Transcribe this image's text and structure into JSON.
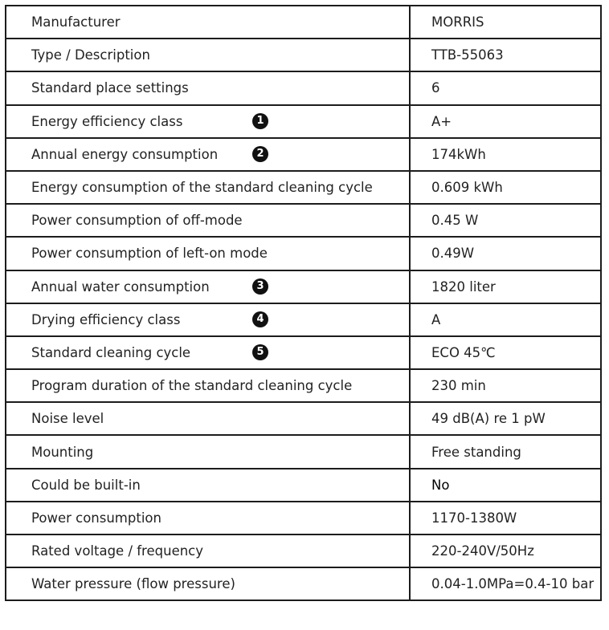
{
  "rows": [
    {
      "label": "Manufacturer",
      "value": "MORRIS"
    },
    {
      "label": "Type / Description",
      "value": "TTB-55063"
    },
    {
      "label": "Standard place settings",
      "value": "6"
    },
    {
      "label": "Energy efficiency class",
      "badge": "1",
      "value": "A+"
    },
    {
      "label": "Annual energy consumption",
      "badge": "2",
      "value": "174kWh"
    },
    {
      "label": "Energy consumption of the standard cleaning cycle",
      "value": "0.609 kWh"
    },
    {
      "label": "Power consumption of off-mode",
      "value": "0.45 W"
    },
    {
      "label": "Power consumption of left-on mode",
      "value": "0.49W"
    },
    {
      "label": "Annual water consumption",
      "badge": "3",
      "value": "1820 liter"
    },
    {
      "label": "Drying efficiency class",
      "badge": "4",
      "value": "A"
    },
    {
      "label": "Standard cleaning cycle",
      "badge": "5",
      "value": "ECO 45℃"
    },
    {
      "label": "Program duration of the standard cleaning cycle",
      "value": "230 min"
    },
    {
      "label": "Noise level",
      "value": "49 dB(A) re 1 pW"
    },
    {
      "label": "Mounting",
      "value": "Free standing"
    },
    {
      "label": "Could be built-in",
      "value": "No"
    },
    {
      "label": "Power consumption",
      "value": "1170-1380W"
    },
    {
      "label": "Rated voltage / frequency",
      "value": "220-240V/50Hz"
    },
    {
      "label": "Water pressure (flow pressure)",
      "value": "0.04-1.0MPa=0.4-10 bar"
    }
  ]
}
